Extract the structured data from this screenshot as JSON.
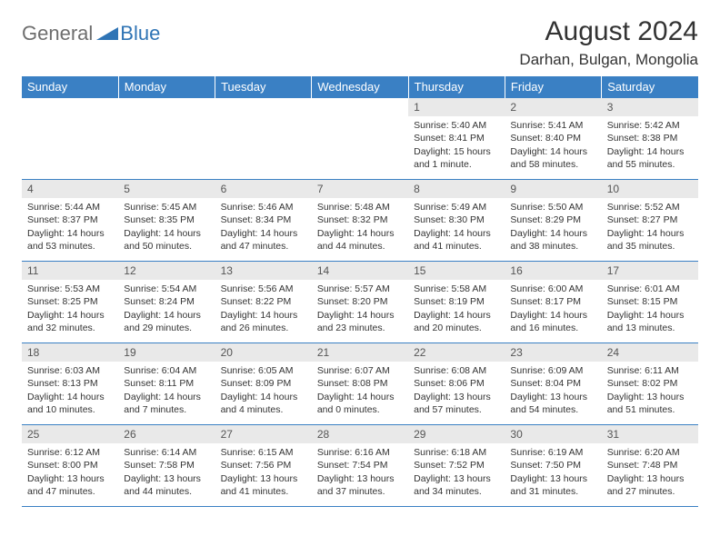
{
  "logo": {
    "general": "General",
    "blue": "Blue"
  },
  "title": "August 2024",
  "location": "Darhan, Bulgan, Mongolia",
  "colors": {
    "header_bg": "#3a80c4",
    "header_text": "#ffffff",
    "daynum_bg": "#e9e9e9",
    "daynum_text": "#555555",
    "border": "#3a80c4",
    "logo_gray": "#6e6e6e",
    "logo_blue": "#2f74b5"
  },
  "weekdays": [
    "Sunday",
    "Monday",
    "Tuesday",
    "Wednesday",
    "Thursday",
    "Friday",
    "Saturday"
  ],
  "weeks": [
    [
      null,
      null,
      null,
      null,
      {
        "n": "1",
        "sr": "Sunrise: 5:40 AM",
        "ss": "Sunset: 8:41 PM",
        "d1": "Daylight: 15 hours",
        "d2": "and 1 minute."
      },
      {
        "n": "2",
        "sr": "Sunrise: 5:41 AM",
        "ss": "Sunset: 8:40 PM",
        "d1": "Daylight: 14 hours",
        "d2": "and 58 minutes."
      },
      {
        "n": "3",
        "sr": "Sunrise: 5:42 AM",
        "ss": "Sunset: 8:38 PM",
        "d1": "Daylight: 14 hours",
        "d2": "and 55 minutes."
      }
    ],
    [
      {
        "n": "4",
        "sr": "Sunrise: 5:44 AM",
        "ss": "Sunset: 8:37 PM",
        "d1": "Daylight: 14 hours",
        "d2": "and 53 minutes."
      },
      {
        "n": "5",
        "sr": "Sunrise: 5:45 AM",
        "ss": "Sunset: 8:35 PM",
        "d1": "Daylight: 14 hours",
        "d2": "and 50 minutes."
      },
      {
        "n": "6",
        "sr": "Sunrise: 5:46 AM",
        "ss": "Sunset: 8:34 PM",
        "d1": "Daylight: 14 hours",
        "d2": "and 47 minutes."
      },
      {
        "n": "7",
        "sr": "Sunrise: 5:48 AM",
        "ss": "Sunset: 8:32 PM",
        "d1": "Daylight: 14 hours",
        "d2": "and 44 minutes."
      },
      {
        "n": "8",
        "sr": "Sunrise: 5:49 AM",
        "ss": "Sunset: 8:30 PM",
        "d1": "Daylight: 14 hours",
        "d2": "and 41 minutes."
      },
      {
        "n": "9",
        "sr": "Sunrise: 5:50 AM",
        "ss": "Sunset: 8:29 PM",
        "d1": "Daylight: 14 hours",
        "d2": "and 38 minutes."
      },
      {
        "n": "10",
        "sr": "Sunrise: 5:52 AM",
        "ss": "Sunset: 8:27 PM",
        "d1": "Daylight: 14 hours",
        "d2": "and 35 minutes."
      }
    ],
    [
      {
        "n": "11",
        "sr": "Sunrise: 5:53 AM",
        "ss": "Sunset: 8:25 PM",
        "d1": "Daylight: 14 hours",
        "d2": "and 32 minutes."
      },
      {
        "n": "12",
        "sr": "Sunrise: 5:54 AM",
        "ss": "Sunset: 8:24 PM",
        "d1": "Daylight: 14 hours",
        "d2": "and 29 minutes."
      },
      {
        "n": "13",
        "sr": "Sunrise: 5:56 AM",
        "ss": "Sunset: 8:22 PM",
        "d1": "Daylight: 14 hours",
        "d2": "and 26 minutes."
      },
      {
        "n": "14",
        "sr": "Sunrise: 5:57 AM",
        "ss": "Sunset: 8:20 PM",
        "d1": "Daylight: 14 hours",
        "d2": "and 23 minutes."
      },
      {
        "n": "15",
        "sr": "Sunrise: 5:58 AM",
        "ss": "Sunset: 8:19 PM",
        "d1": "Daylight: 14 hours",
        "d2": "and 20 minutes."
      },
      {
        "n": "16",
        "sr": "Sunrise: 6:00 AM",
        "ss": "Sunset: 8:17 PM",
        "d1": "Daylight: 14 hours",
        "d2": "and 16 minutes."
      },
      {
        "n": "17",
        "sr": "Sunrise: 6:01 AM",
        "ss": "Sunset: 8:15 PM",
        "d1": "Daylight: 14 hours",
        "d2": "and 13 minutes."
      }
    ],
    [
      {
        "n": "18",
        "sr": "Sunrise: 6:03 AM",
        "ss": "Sunset: 8:13 PM",
        "d1": "Daylight: 14 hours",
        "d2": "and 10 minutes."
      },
      {
        "n": "19",
        "sr": "Sunrise: 6:04 AM",
        "ss": "Sunset: 8:11 PM",
        "d1": "Daylight: 14 hours",
        "d2": "and 7 minutes."
      },
      {
        "n": "20",
        "sr": "Sunrise: 6:05 AM",
        "ss": "Sunset: 8:09 PM",
        "d1": "Daylight: 14 hours",
        "d2": "and 4 minutes."
      },
      {
        "n": "21",
        "sr": "Sunrise: 6:07 AM",
        "ss": "Sunset: 8:08 PM",
        "d1": "Daylight: 14 hours",
        "d2": "and 0 minutes."
      },
      {
        "n": "22",
        "sr": "Sunrise: 6:08 AM",
        "ss": "Sunset: 8:06 PM",
        "d1": "Daylight: 13 hours",
        "d2": "and 57 minutes."
      },
      {
        "n": "23",
        "sr": "Sunrise: 6:09 AM",
        "ss": "Sunset: 8:04 PM",
        "d1": "Daylight: 13 hours",
        "d2": "and 54 minutes."
      },
      {
        "n": "24",
        "sr": "Sunrise: 6:11 AM",
        "ss": "Sunset: 8:02 PM",
        "d1": "Daylight: 13 hours",
        "d2": "and 51 minutes."
      }
    ],
    [
      {
        "n": "25",
        "sr": "Sunrise: 6:12 AM",
        "ss": "Sunset: 8:00 PM",
        "d1": "Daylight: 13 hours",
        "d2": "and 47 minutes."
      },
      {
        "n": "26",
        "sr": "Sunrise: 6:14 AM",
        "ss": "Sunset: 7:58 PM",
        "d1": "Daylight: 13 hours",
        "d2": "and 44 minutes."
      },
      {
        "n": "27",
        "sr": "Sunrise: 6:15 AM",
        "ss": "Sunset: 7:56 PM",
        "d1": "Daylight: 13 hours",
        "d2": "and 41 minutes."
      },
      {
        "n": "28",
        "sr": "Sunrise: 6:16 AM",
        "ss": "Sunset: 7:54 PM",
        "d1": "Daylight: 13 hours",
        "d2": "and 37 minutes."
      },
      {
        "n": "29",
        "sr": "Sunrise: 6:18 AM",
        "ss": "Sunset: 7:52 PM",
        "d1": "Daylight: 13 hours",
        "d2": "and 34 minutes."
      },
      {
        "n": "30",
        "sr": "Sunrise: 6:19 AM",
        "ss": "Sunset: 7:50 PM",
        "d1": "Daylight: 13 hours",
        "d2": "and 31 minutes."
      },
      {
        "n": "31",
        "sr": "Sunrise: 6:20 AM",
        "ss": "Sunset: 7:48 PM",
        "d1": "Daylight: 13 hours",
        "d2": "and 27 minutes."
      }
    ]
  ]
}
